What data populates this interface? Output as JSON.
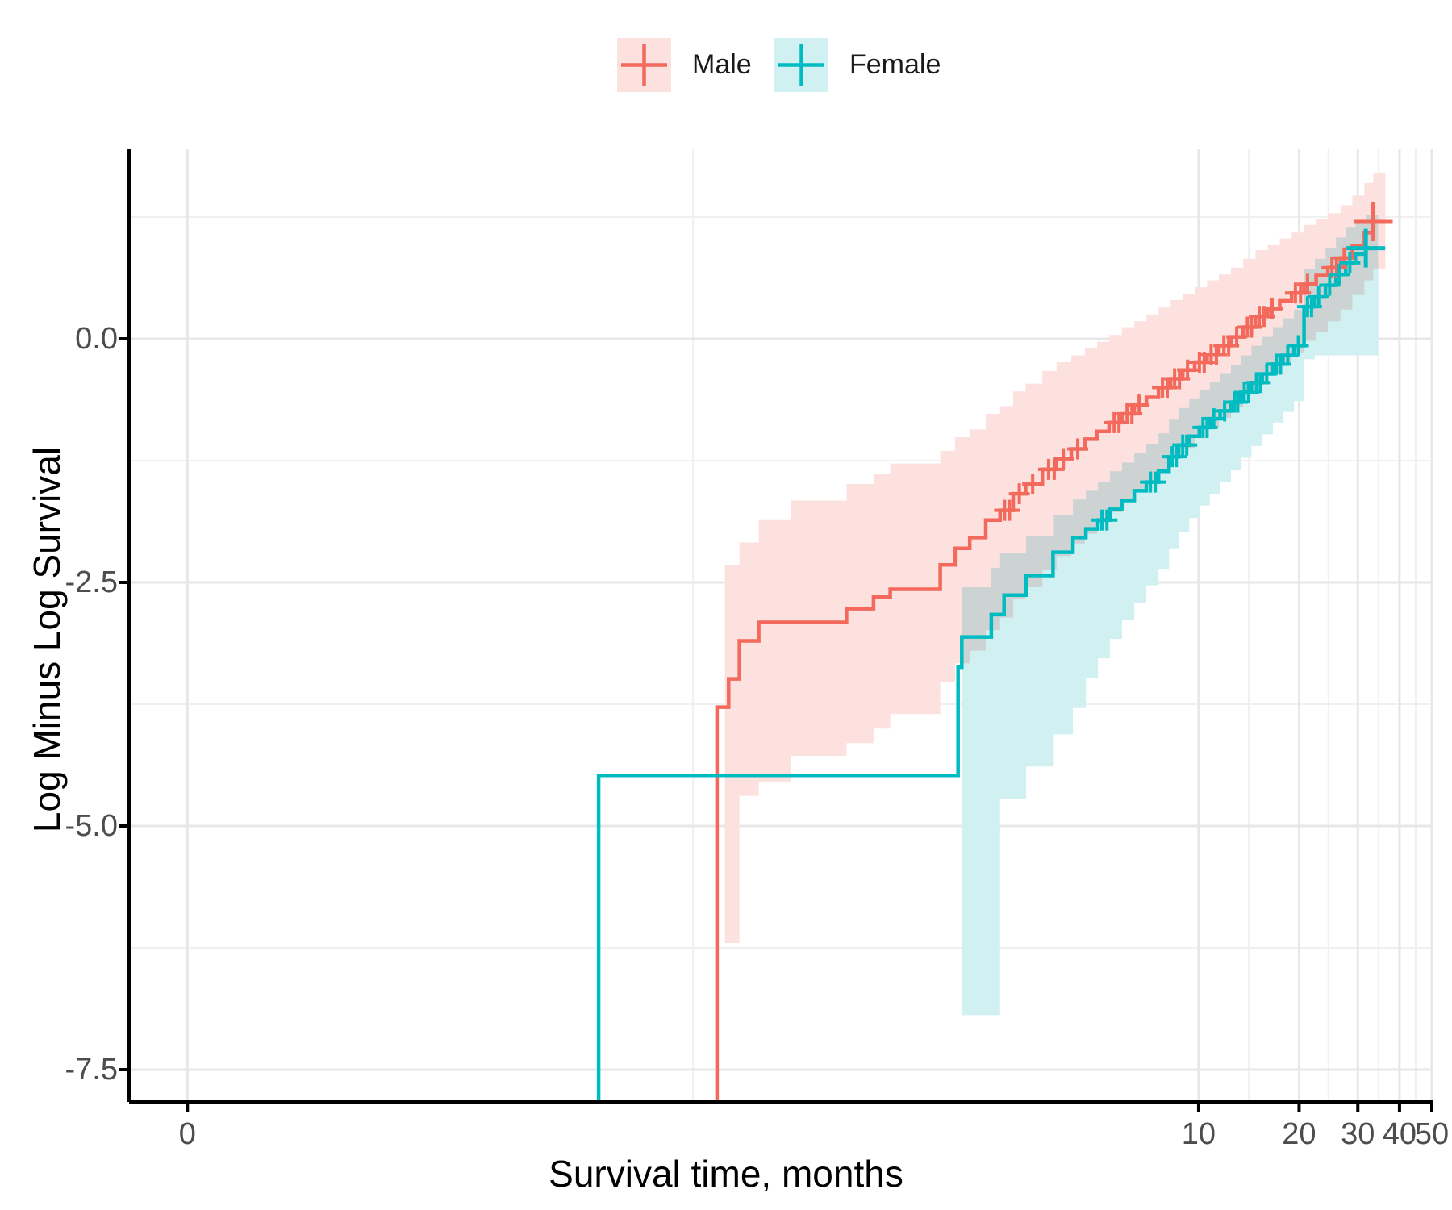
{
  "chart_data": {
    "type": "line",
    "subtype": "kaplan-meier-cloglog-step",
    "title": "",
    "xlabel": "Survival time, months",
    "ylabel": "Log Minus Log Survival",
    "x_scale": "log",
    "ylim": [
      -7.83,
      1.95
    ],
    "grid": "on",
    "legend_position": "top",
    "x_ticks": [
      {
        "label": "0",
        "t": 0.0093
      },
      {
        "label": "10",
        "t": 10
      },
      {
        "label": "20",
        "t": 20
      },
      {
        "label": "30",
        "t": 30
      },
      {
        "label": "40",
        "t": 40
      },
      {
        "label": "50",
        "t": 50
      }
    ],
    "x_minor": [
      0.305,
      14.14,
      24.49,
      34.64,
      44.72
    ],
    "y_ticks": [
      {
        "label": "0.0",
        "v": 0
      },
      {
        "label": "-2.5",
        "v": -2.5
      },
      {
        "label": "-5.0",
        "v": -5
      },
      {
        "label": "-7.5",
        "v": -7.5
      }
    ],
    "y_minor": [
      1.25,
      -1.25,
      -3.75,
      -6.25
    ],
    "series": [
      {
        "name": "Male",
        "color": "#F3695C",
        "band_fill": "#FCE1DF",
        "steps": [
          [
            0.36,
            -3.78
          ],
          [
            0.39,
            -3.49
          ],
          [
            0.42,
            -3.1
          ],
          [
            0.48,
            -2.91
          ],
          [
            0.88,
            -2.77
          ],
          [
            1.06,
            -2.65
          ],
          [
            1.19,
            -2.57
          ],
          [
            1.68,
            -2.32
          ],
          [
            1.86,
            -2.15
          ],
          [
            2.06,
            -2.04
          ],
          [
            2.3,
            -1.86
          ],
          [
            2.54,
            -1.76
          ],
          [
            2.78,
            -1.59
          ],
          [
            3.03,
            -1.49
          ],
          [
            3.4,
            -1.34
          ],
          [
            3.75,
            -1.23
          ],
          [
            4.15,
            -1.13
          ],
          [
            4.56,
            -1.03
          ],
          [
            4.96,
            -0.95
          ],
          [
            5.39,
            -0.86
          ],
          [
            5.89,
            -0.77
          ],
          [
            6.41,
            -0.68
          ],
          [
            6.97,
            -0.6
          ],
          [
            7.58,
            -0.5
          ],
          [
            8.24,
            -0.41
          ],
          [
            8.96,
            -0.32
          ],
          [
            9.73,
            -0.24
          ],
          [
            10.6,
            -0.16
          ],
          [
            11.5,
            -0.07
          ],
          [
            12.5,
            0.02
          ],
          [
            13.6,
            0.12
          ],
          [
            14.8,
            0.23
          ],
          [
            16.1,
            0.31
          ],
          [
            17.5,
            0.39
          ],
          [
            19.0,
            0.47
          ],
          [
            20.7,
            0.56
          ],
          [
            22.5,
            0.65
          ],
          [
            24.4,
            0.73
          ],
          [
            26.6,
            0.83
          ],
          [
            28.9,
            0.95
          ],
          [
            31.4,
            1.09
          ],
          [
            33.4,
            1.2
          ]
        ],
        "tail_t": 36.3,
        "censored": [
          [
            2.62,
            -1.76
          ],
          [
            2.71,
            -1.76
          ],
          [
            2.9,
            -1.59
          ],
          [
            3.18,
            -1.49
          ],
          [
            3.55,
            -1.34
          ],
          [
            3.69,
            -1.34
          ],
          [
            3.93,
            -1.23
          ],
          [
            4.34,
            -1.13
          ],
          [
            5.58,
            -0.86
          ],
          [
            5.77,
            -0.86
          ],
          [
            6.1,
            -0.77
          ],
          [
            6.31,
            -0.77
          ],
          [
            6.63,
            -0.68
          ],
          [
            7.79,
            -0.5
          ],
          [
            8.05,
            -0.5
          ],
          [
            8.47,
            -0.41
          ],
          [
            8.76,
            -0.41
          ],
          [
            9.26,
            -0.32
          ],
          [
            10.05,
            -0.24
          ],
          [
            10.39,
            -0.24
          ],
          [
            10.9,
            -0.16
          ],
          [
            11.3,
            -0.16
          ],
          [
            11.9,
            -0.07
          ],
          [
            12.3,
            -0.07
          ],
          [
            13.0,
            0.02
          ],
          [
            14.0,
            0.12
          ],
          [
            14.4,
            0.12
          ],
          [
            15.2,
            0.23
          ],
          [
            15.7,
            0.23
          ],
          [
            16.6,
            0.31
          ],
          [
            19.5,
            0.47
          ],
          [
            20.2,
            0.47
          ],
          [
            21.2,
            0.56
          ],
          [
            25.1,
            0.73
          ],
          [
            25.9,
            0.73
          ],
          [
            27.3,
            0.83
          ]
        ],
        "final_censor": [
          33.4,
          1.2
        ],
        "band": [
          [
            0.38,
            -2.32,
            -6.2
          ],
          [
            0.42,
            -2.09,
            -4.69
          ],
          [
            0.48,
            -1.86,
            -4.55
          ],
          [
            0.6,
            -1.66,
            -4.28
          ],
          [
            0.88,
            -1.49,
            -4.15
          ],
          [
            1.06,
            -1.39,
            -4.0
          ],
          [
            1.19,
            -1.28,
            -3.85
          ],
          [
            1.68,
            -1.15,
            -3.52
          ],
          [
            1.86,
            -1.01,
            -3.33
          ],
          [
            2.06,
            -0.93,
            -3.2
          ],
          [
            2.3,
            -0.77,
            -2.99
          ],
          [
            2.54,
            -0.69,
            -2.86
          ],
          [
            2.78,
            -0.54,
            -2.67
          ],
          [
            3.03,
            -0.46,
            -2.55
          ],
          [
            3.4,
            -0.33,
            -2.37
          ],
          [
            3.75,
            -0.24,
            -2.23
          ],
          [
            4.15,
            -0.17,
            -2.1
          ],
          [
            4.56,
            -0.09,
            -2.0
          ],
          [
            4.96,
            -0.03,
            -1.89
          ],
          [
            5.39,
            0.04,
            -1.78
          ],
          [
            5.89,
            0.12,
            -1.66
          ],
          [
            6.41,
            0.18,
            -1.56
          ],
          [
            6.97,
            0.25,
            -1.45
          ],
          [
            7.58,
            0.32,
            -1.34
          ],
          [
            8.24,
            0.4,
            -1.23
          ],
          [
            8.96,
            0.46,
            -1.12
          ],
          [
            9.73,
            0.53,
            -1.02
          ],
          [
            10.6,
            0.6,
            -0.91
          ],
          [
            11.5,
            0.66,
            -0.81
          ],
          [
            12.5,
            0.73,
            -0.7
          ],
          [
            13.6,
            0.82,
            -0.57
          ],
          [
            14.8,
            0.91,
            -0.44
          ],
          [
            16.1,
            0.96,
            -0.35
          ],
          [
            17.5,
            1.03,
            -0.24
          ],
          [
            19.0,
            1.09,
            -0.14
          ],
          [
            20.7,
            1.17,
            -0.02
          ],
          [
            22.5,
            1.23,
            0.07
          ],
          [
            24.4,
            1.29,
            0.18
          ],
          [
            26.6,
            1.37,
            0.3
          ],
          [
            28.9,
            1.47,
            0.45
          ],
          [
            31.4,
            1.6,
            0.6
          ],
          [
            33.4,
            1.7,
            0.72
          ]
        ],
        "band_tail_t": 36.3
      },
      {
        "name": "Female",
        "color": "#00BCC1",
        "band_fill": "#D0F0F2",
        "steps": [
          [
            0.159,
            -4.48
          ],
          [
            1.9,
            -3.37
          ],
          [
            1.95,
            -3.06
          ],
          [
            2.39,
            -2.83
          ],
          [
            2.61,
            -2.63
          ],
          [
            3.04,
            -2.43
          ],
          [
            3.66,
            -2.19
          ],
          [
            4.2,
            -2.04
          ],
          [
            4.59,
            -1.95
          ],
          [
            4.99,
            -1.86
          ],
          [
            5.42,
            -1.75
          ],
          [
            5.89,
            -1.66
          ],
          [
            6.41,
            -1.56
          ],
          [
            6.97,
            -1.47
          ],
          [
            7.58,
            -1.36
          ],
          [
            8.15,
            -1.21
          ],
          [
            8.71,
            -1.09
          ],
          [
            9.37,
            -1.0
          ],
          [
            10.05,
            -0.91
          ],
          [
            10.8,
            -0.82
          ],
          [
            11.6,
            -0.74
          ],
          [
            12.5,
            -0.65
          ],
          [
            13.4,
            -0.55
          ],
          [
            14.4,
            -0.45
          ],
          [
            15.5,
            -0.36
          ],
          [
            16.7,
            -0.26
          ],
          [
            17.9,
            -0.17
          ],
          [
            19.3,
            -0.07
          ],
          [
            20.7,
            0.33
          ],
          [
            22.3,
            0.43
          ],
          [
            24.0,
            0.55
          ],
          [
            25.8,
            0.66
          ],
          [
            27.6,
            0.78
          ],
          [
            29.5,
            0.87
          ],
          [
            31.7,
            0.93
          ]
        ],
        "tail_t": 34.5,
        "censored": [
          [
            5.13,
            -1.86
          ],
          [
            5.31,
            -1.86
          ],
          [
            7.17,
            -1.47
          ],
          [
            7.41,
            -1.47
          ],
          [
            8.33,
            -1.21
          ],
          [
            8.57,
            -1.21
          ],
          [
            8.96,
            -1.09
          ],
          [
            9.21,
            -1.09
          ],
          [
            10.3,
            -0.91
          ],
          [
            10.6,
            -0.91
          ],
          [
            11.1,
            -0.82
          ],
          [
            11.96,
            -0.74
          ],
          [
            12.8,
            -0.65
          ],
          [
            13.1,
            -0.65
          ],
          [
            13.7,
            -0.55
          ],
          [
            14.1,
            -0.55
          ],
          [
            14.9,
            -0.45
          ],
          [
            15.3,
            -0.45
          ],
          [
            16.0,
            -0.36
          ],
          [
            17.1,
            -0.26
          ],
          [
            17.6,
            -0.26
          ],
          [
            18.5,
            -0.17
          ],
          [
            19.9,
            -0.07
          ],
          [
            21.2,
            0.33
          ],
          [
            21.8,
            0.33
          ],
          [
            22.9,
            0.43
          ],
          [
            24.7,
            0.55
          ],
          [
            26.4,
            0.66
          ],
          [
            28.4,
            0.78
          ]
        ],
        "final_censor": [
          31.7,
          0.93
        ],
        "band": [
          [
            1.95,
            -2.55,
            -6.94
          ],
          [
            2.39,
            -2.35,
            -6.94
          ],
          [
            2.54,
            -2.2,
            -4.72
          ],
          [
            3.04,
            -2.02,
            -4.39
          ],
          [
            3.66,
            -1.81,
            -4.06
          ],
          [
            4.2,
            -1.65,
            -3.79
          ],
          [
            4.59,
            -1.56,
            -3.48
          ],
          [
            4.99,
            -1.47,
            -3.28
          ],
          [
            5.42,
            -1.36,
            -3.08
          ],
          [
            5.89,
            -1.27,
            -2.89
          ],
          [
            6.41,
            -1.17,
            -2.71
          ],
          [
            6.97,
            -1.08,
            -2.53
          ],
          [
            7.58,
            -0.97,
            -2.36
          ],
          [
            8.15,
            -0.83,
            -2.15
          ],
          [
            8.71,
            -0.71,
            -1.98
          ],
          [
            9.37,
            -0.62,
            -1.84
          ],
          [
            10.05,
            -0.53,
            -1.71
          ],
          [
            10.8,
            -0.44,
            -1.59
          ],
          [
            11.6,
            -0.36,
            -1.47
          ],
          [
            12.5,
            -0.27,
            -1.35
          ],
          [
            13.4,
            -0.17,
            -1.22
          ],
          [
            14.4,
            -0.07,
            -1.1
          ],
          [
            15.5,
            0.02,
            -0.98
          ],
          [
            16.7,
            0.12,
            -0.86
          ],
          [
            17.9,
            0.21,
            -0.75
          ],
          [
            19.3,
            0.3,
            -0.64
          ],
          [
            20.7,
            0.72,
            -0.21
          ],
          [
            22.3,
            0.82,
            -0.17
          ],
          [
            24.0,
            0.93,
            -0.17
          ],
          [
            25.8,
            1.04,
            -0.17
          ],
          [
            27.6,
            1.14,
            -0.17
          ],
          [
            29.5,
            1.22,
            -0.17
          ],
          [
            31.7,
            1.27,
            -0.17
          ]
        ],
        "band_tail_t": 34.5
      }
    ],
    "style": {
      "grid_major_color": "#e7e7e7",
      "grid_minor_color": "#f0f0f0",
      "axis_color": "#000000",
      "tick_label_color": "#4d4d4d"
    }
  }
}
